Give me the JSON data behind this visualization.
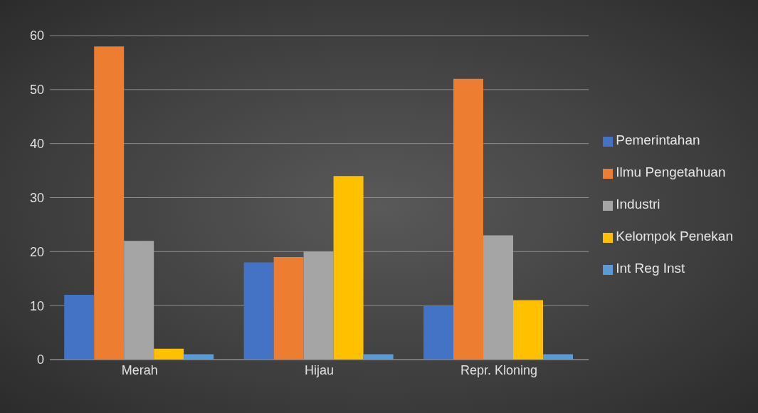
{
  "chart_data": {
    "type": "bar",
    "categories": [
      "Merah",
      "Hijau",
      "Repr. Kloning"
    ],
    "series": [
      {
        "name": "Pemerintahan",
        "color": "#4472c4",
        "values": [
          12,
          18,
          10
        ]
      },
      {
        "name": "Ilmu Pengetahuan",
        "color": "#ed7d31",
        "values": [
          58,
          19,
          52
        ]
      },
      {
        "name": "Industri",
        "color": "#a5a5a5",
        "values": [
          22,
          20,
          23
        ]
      },
      {
        "name": "Kelompok Penekan",
        "color": "#ffc000",
        "values": [
          2,
          34,
          11
        ]
      },
      {
        "name": "Int Reg Inst",
        "color": "#5b9bd5",
        "values": [
          1,
          1,
          1
        ]
      }
    ],
    "ylim": [
      0,
      60
    ],
    "yticks": [
      0,
      10,
      20,
      30,
      40,
      50,
      60
    ],
    "grid": "y",
    "legend": "right"
  }
}
